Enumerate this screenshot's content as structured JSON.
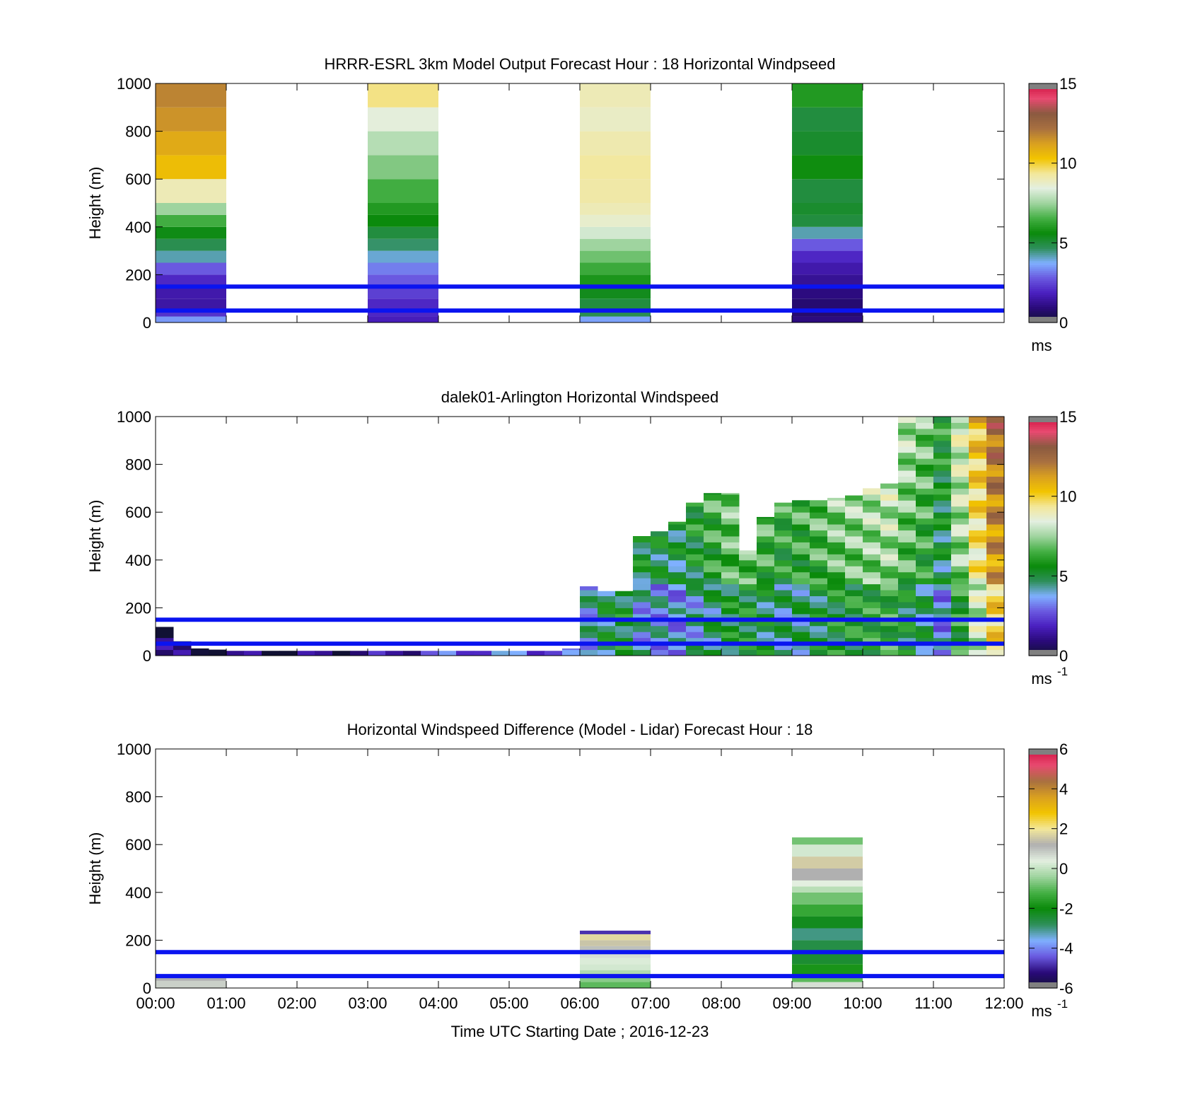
{
  "figure": {
    "xlabel": "Time UTC  Starting Date ; 2016-12-23",
    "colors": {
      "ref_line": "#0a14f0",
      "speed_scale": [
        "#111133",
        "#2a0a7a",
        "#4a1fc0",
        "#6a5ae0",
        "#7fb0ff",
        "#2e8f5a",
        "#0a8a0a",
        "#45b045",
        "#9fd49f",
        "#e3efe0",
        "#f3e79a",
        "#f2c400",
        "#d9a020",
        "#a87040",
        "#8a5a40",
        "#e84a70",
        "#d01040"
      ],
      "diff_scale": [
        "#111133",
        "#2a0a7a",
        "#6a5ae0",
        "#7fb0ff",
        "#2e8f5a",
        "#0a8a0a",
        "#45b045",
        "#9fd49f",
        "#e3efe0",
        "#b0b0b0",
        "#f3e79a",
        "#f2c400",
        "#d9a020",
        "#a87040",
        "#e84a70",
        "#d01040"
      ]
    }
  },
  "chart_data": [
    {
      "type": "heatmap",
      "title": "HRRR-ESRL 3km Model Output   Forecast Hour : 18 Horizontal Windpseed",
      "ylabel": "Height (m)",
      "xlim": [
        "00:00",
        "12:00"
      ],
      "ylim": [
        0,
        1000
      ],
      "yticks": [
        "0",
        "200",
        "400",
        "600",
        "800",
        "1000"
      ],
      "colorbar": {
        "range": [
          0,
          15
        ],
        "ticks": [
          "0",
          "5",
          "10",
          "15"
        ],
        "unit": "ms",
        "unit_sup": ""
      },
      "reference_heights_m": [
        50,
        150
      ],
      "columns": [
        {
          "start": "00:00",
          "end": "01:00",
          "profile": [
            [
              25,
              3.5
            ],
            [
              50,
              2.2
            ],
            [
              100,
              1.5
            ],
            [
              150,
              1.6
            ],
            [
              200,
              2.0
            ],
            [
              250,
              2.8
            ],
            [
              300,
              4.2
            ],
            [
              350,
              4.8
            ],
            [
              400,
              5.5
            ],
            [
              450,
              6.5
            ],
            [
              500,
              7.5
            ],
            [
              600,
              9.0
            ],
            [
              700,
              10.5
            ],
            [
              800,
              11.0
            ],
            [
              900,
              11.5
            ],
            [
              1000,
              11.8
            ]
          ]
        },
        {
          "start": "03:00",
          "end": "04:00",
          "profile": [
            [
              25,
              1.8
            ],
            [
              100,
              2.0
            ],
            [
              150,
              2.4
            ],
            [
              200,
              2.8
            ],
            [
              250,
              3.2
            ],
            [
              300,
              4.0
            ],
            [
              350,
              4.6
            ],
            [
              400,
              5.0
            ],
            [
              450,
              5.6
            ],
            [
              500,
              6.0
            ],
            [
              600,
              6.5
            ],
            [
              700,
              7.2
            ],
            [
              800,
              7.8
            ],
            [
              900,
              8.5
            ],
            [
              1000,
              9.5
            ]
          ]
        },
        {
          "start": "06:00",
          "end": "07:00",
          "profile": [
            [
              25,
              3.6
            ],
            [
              50,
              4.8
            ],
            [
              100,
              5.0
            ],
            [
              150,
              5.4
            ],
            [
              200,
              5.9
            ],
            [
              250,
              6.4
            ],
            [
              300,
              7.0
            ],
            [
              350,
              7.5
            ],
            [
              400,
              8.2
            ],
            [
              450,
              8.7
            ],
            [
              500,
              9.0
            ],
            [
              600,
              9.2
            ],
            [
              700,
              9.3
            ],
            [
              800,
              9.1
            ],
            [
              900,
              8.8
            ],
            [
              1000,
              9.0
            ]
          ]
        },
        {
          "start": "09:00",
          "end": "10:00",
          "profile": [
            [
              25,
              1.0
            ],
            [
              100,
              0.8
            ],
            [
              150,
              1.0
            ],
            [
              200,
              1.3
            ],
            [
              250,
              1.6
            ],
            [
              300,
              2.0
            ],
            [
              350,
              2.8
            ],
            [
              400,
              4.2
            ],
            [
              450,
              5.0
            ],
            [
              500,
              5.2
            ],
            [
              600,
              5.0
            ],
            [
              700,
              5.7
            ],
            [
              800,
              5.2
            ],
            [
              900,
              5.0
            ],
            [
              1000,
              6.0
            ]
          ]
        }
      ]
    },
    {
      "type": "heatmap",
      "title": "dalek01-Arlington  Horizontal Windspeed",
      "ylabel": "Height (m)",
      "xlim": [
        "00:00",
        "12:00"
      ],
      "ylim": [
        0,
        1000
      ],
      "yticks": [
        "0",
        "200",
        "400",
        "600",
        "800",
        "1000"
      ],
      "colorbar": {
        "range": [
          0,
          15
        ],
        "ticks": [
          "0",
          "5",
          "10",
          "15"
        ],
        "unit": "ms",
        "unit_sup": "-1"
      },
      "reference_heights_m": [
        50,
        150
      ],
      "time_bin_minutes": 15,
      "columns_top_m": [
        120,
        60,
        30,
        25,
        20,
        20,
        20,
        20,
        20,
        20,
        20,
        20,
        20,
        20,
        20,
        20,
        20,
        20,
        20,
        20,
        20,
        20,
        20,
        30,
        290,
        270,
        270,
        500,
        520,
        560,
        640,
        680,
        680,
        440,
        580,
        640,
        650,
        650,
        660,
        670,
        700,
        720,
        1000,
        1000,
        1000,
        1000,
        1000,
        1000
      ],
      "columns_speed_ms": [
        1.2,
        1.0,
        0.9,
        1.0,
        1.1,
        1.2,
        1.3,
        1.2,
        1.1,
        1.3,
        1.4,
        1.5,
        1.6,
        2.0,
        2.4,
        2.8,
        3.0,
        3.2,
        3.4,
        3.5,
        3.6,
        3.4,
        3.2,
        3.0,
        4.5,
        5.5,
        5.8,
        4.4,
        4.2,
        4.0,
        4.6,
        5.2,
        5.8,
        6.0,
        5.5,
        5.0,
        5.2,
        5.6,
        6.0,
        6.2,
        6.4,
        6.6,
        5.8,
        5.2,
        4.0,
        6.5,
        8.5,
        10.5
      ]
    },
    {
      "type": "heatmap",
      "title": "Horizontal Windspeed Difference (Model - Lidar) Forecast Hour : 18",
      "ylabel": "Height (m)",
      "xlim": [
        "00:00",
        "12:00"
      ],
      "ylim": [
        0,
        1000
      ],
      "yticks": [
        "0",
        "200",
        "400",
        "600",
        "800",
        "1000"
      ],
      "xticks": [
        "00:00",
        "01:00",
        "02:00",
        "03:00",
        "04:00",
        "05:00",
        "06:00",
        "07:00",
        "08:00",
        "09:00",
        "10:00",
        "11:00",
        "12:00"
      ],
      "colorbar": {
        "range": [
          -6,
          6
        ],
        "ticks": [
          "-6",
          "-4",
          "-2",
          "0",
          "2",
          "4",
          "6"
        ],
        "unit": "ms",
        "unit_sup": "-1"
      },
      "reference_heights_m": [
        50,
        150
      ],
      "columns": [
        {
          "start": "00:00",
          "end": "01:00",
          "profile": [
            [
              30,
              0.8
            ],
            [
              50,
              1.2
            ]
          ]
        },
        {
          "start": "06:00",
          "end": "07:00",
          "profile": [
            [
              25,
              -1.0
            ],
            [
              50,
              -0.6
            ],
            [
              75,
              -0.2
            ],
            [
              100,
              0.2
            ],
            [
              125,
              0.3
            ],
            [
              150,
              0.6
            ],
            [
              175,
              1.0
            ],
            [
              200,
              1.5
            ],
            [
              225,
              1.8
            ],
            [
              240,
              -4.8
            ]
          ]
        },
        {
          "start": "09:00",
          "end": "10:00",
          "profile": [
            [
              25,
              0.6
            ],
            [
              50,
              -1.0
            ],
            [
              100,
              -1.8
            ],
            [
              150,
              -2.4
            ],
            [
              200,
              -2.6
            ],
            [
              250,
              -3.0
            ],
            [
              300,
              -2.2
            ],
            [
              350,
              -1.4
            ],
            [
              400,
              -0.8
            ],
            [
              425,
              -0.1
            ],
            [
              450,
              0.4
            ],
            [
              500,
              1.2
            ],
            [
              550,
              1.6
            ],
            [
              600,
              0.2
            ],
            [
              630,
              -0.8
            ]
          ]
        }
      ]
    }
  ]
}
